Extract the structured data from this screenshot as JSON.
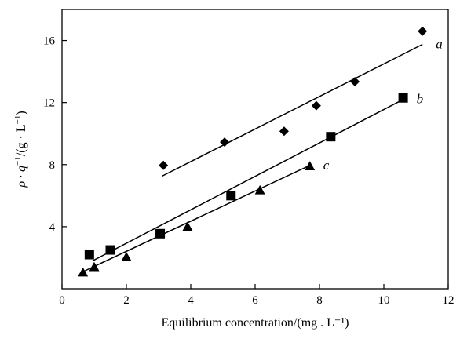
{
  "chart_data": {
    "type": "scatter",
    "title": "",
    "xlabel": "Equilibrium concentration/(mg . L⁻¹)",
    "ylabel_prefix": "ρ · q",
    "ylabel_sup": "−1",
    "ylabel_suffix": "/(g · L",
    "ylabel_end": ")",
    "xlim": [
      0,
      12
    ],
    "ylim": [
      0,
      18
    ],
    "x_ticks": [
      0,
      2,
      4,
      6,
      8,
      10,
      12
    ],
    "y_ticks": [
      4,
      8,
      12,
      16
    ],
    "grid": false,
    "series": [
      {
        "name": "a",
        "marker": "diamond",
        "points": [
          [
            3.15,
            7.95
          ],
          [
            5.05,
            9.45
          ],
          [
            6.9,
            10.15
          ],
          [
            7.9,
            11.8
          ],
          [
            9.1,
            13.35
          ],
          [
            11.2,
            16.6
          ]
        ],
        "fit": [
          [
            3.1,
            7.25
          ],
          [
            11.2,
            15.75
          ]
        ]
      },
      {
        "name": "b",
        "marker": "square",
        "points": [
          [
            0.85,
            2.2
          ],
          [
            1.5,
            2.5
          ],
          [
            3.05,
            3.55
          ],
          [
            5.25,
            6.0
          ],
          [
            8.35,
            9.8
          ],
          [
            10.6,
            12.3
          ]
        ],
        "fit": [
          [
            0.95,
            1.8
          ],
          [
            10.6,
            12.2
          ]
        ]
      },
      {
        "name": "c",
        "marker": "triangle",
        "points": [
          [
            0.65,
            1.05
          ],
          [
            1.0,
            1.4
          ],
          [
            2.0,
            2.05
          ],
          [
            3.9,
            4.0
          ],
          [
            6.15,
            6.35
          ],
          [
            7.7,
            7.9
          ]
        ],
        "fit": [
          [
            0.65,
            1.1
          ],
          [
            7.7,
            7.95
          ]
        ]
      }
    ]
  }
}
